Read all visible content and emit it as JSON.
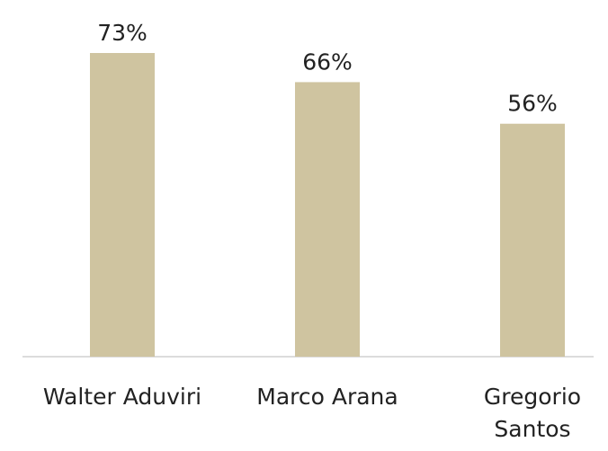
{
  "chart_data": {
    "type": "bar",
    "categories": [
      "Walter Aduviri",
      "Marco Arana",
      "Gregorio Santos"
    ],
    "values": [
      73,
      66,
      56
    ],
    "value_labels": [
      "73%",
      "66%",
      "56%"
    ],
    "color": "#cfc4a0"
  }
}
